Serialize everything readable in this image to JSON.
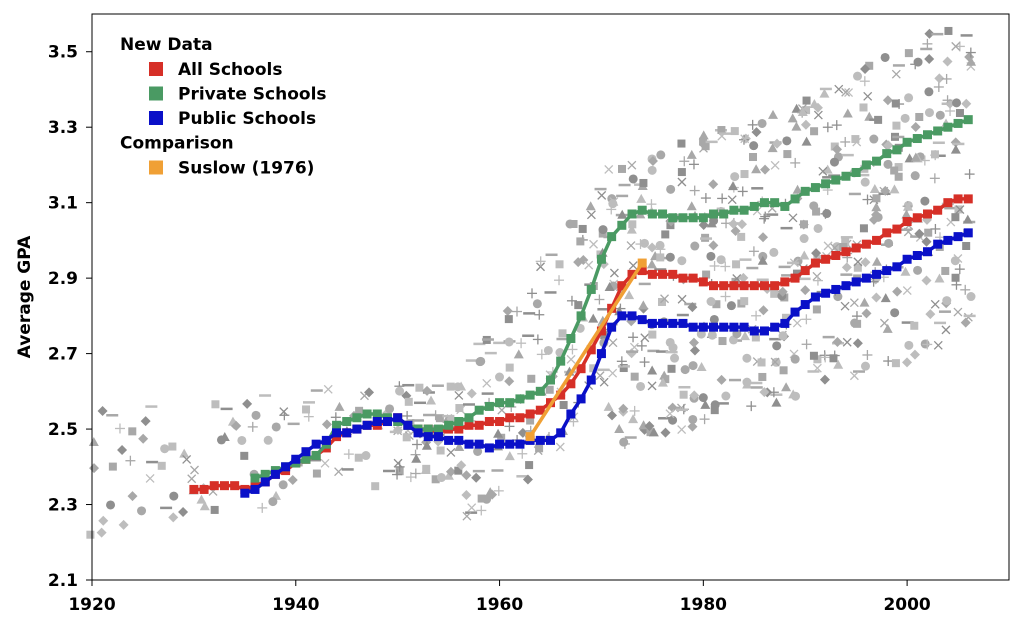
{
  "chart_data": {
    "type": "line",
    "title": "",
    "xlabel": "",
    "ylabel": "Average GPA",
    "xlim": [
      1920,
      2010
    ],
    "ylim": [
      2.1,
      3.6
    ],
    "xticks": [
      "1920",
      "1940",
      "1960",
      "1980",
      "2000"
    ],
    "yticks": [
      "2.1",
      "2.3",
      "2.5",
      "2.7",
      "2.9",
      "3.1",
      "3.3",
      "3.5"
    ],
    "grid": false,
    "legend_position": "top-left",
    "legend": {
      "groups": [
        {
          "heading": "New Data",
          "entries": [
            "All Schools",
            "Private Schools",
            "Public Schools"
          ]
        },
        {
          "heading": "Comparison",
          "entries": [
            "Suslow (1976)"
          ]
        }
      ]
    },
    "series": [
      {
        "name": "All Schools",
        "color": "#d62f27",
        "marker": "square",
        "x": [
          1930,
          1931,
          1932,
          1933,
          1934,
          1935,
          1936,
          1937,
          1938,
          1939,
          1940,
          1941,
          1942,
          1943,
          1944,
          1945,
          1946,
          1947,
          1948,
          1949,
          1950,
          1951,
          1952,
          1953,
          1954,
          1955,
          1956,
          1957,
          1958,
          1959,
          1960,
          1961,
          1962,
          1963,
          1964,
          1965,
          1966,
          1967,
          1968,
          1969,
          1970,
          1971,
          1972,
          1973,
          1974,
          1975,
          1976,
          1977,
          1978,
          1979,
          1980,
          1981,
          1982,
          1983,
          1984,
          1985,
          1986,
          1987,
          1988,
          1989,
          1990,
          1991,
          1992,
          1993,
          1994,
          1995,
          1996,
          1997,
          1998,
          1999,
          2000,
          2001,
          2002,
          2003,
          2004,
          2005,
          2006
        ],
        "values": [
          2.34,
          2.34,
          2.35,
          2.35,
          2.35,
          2.34,
          2.35,
          2.36,
          2.38,
          2.39,
          2.41,
          2.42,
          2.43,
          2.45,
          2.48,
          2.49,
          2.5,
          2.51,
          2.51,
          2.52,
          2.53,
          2.51,
          2.5,
          2.5,
          2.49,
          2.5,
          2.5,
          2.51,
          2.51,
          2.52,
          2.52,
          2.53,
          2.53,
          2.54,
          2.55,
          2.57,
          2.59,
          2.62,
          2.66,
          2.71,
          2.76,
          2.82,
          2.88,
          2.91,
          2.92,
          2.91,
          2.91,
          2.91,
          2.9,
          2.9,
          2.89,
          2.88,
          2.88,
          2.88,
          2.88,
          2.88,
          2.88,
          2.88,
          2.89,
          2.9,
          2.92,
          2.94,
          2.95,
          2.96,
          2.97,
          2.98,
          2.99,
          3.0,
          3.02,
          3.03,
          3.05,
          3.06,
          3.07,
          3.08,
          3.1,
          3.11,
          3.11
        ]
      },
      {
        "name": "Private Schools",
        "color": "#4a9a63",
        "marker": "square",
        "x": [
          1936,
          1937,
          1938,
          1939,
          1940,
          1941,
          1942,
          1943,
          1944,
          1945,
          1946,
          1947,
          1948,
          1949,
          1950,
          1951,
          1952,
          1953,
          1954,
          1955,
          1956,
          1957,
          1958,
          1959,
          1960,
          1961,
          1962,
          1963,
          1964,
          1965,
          1966,
          1967,
          1968,
          1969,
          1970,
          1971,
          1972,
          1973,
          1974,
          1975,
          1976,
          1977,
          1978,
          1979,
          1980,
          1981,
          1982,
          1983,
          1984,
          1985,
          1986,
          1987,
          1988,
          1989,
          1990,
          1991,
          1992,
          1993,
          1994,
          1995,
          1996,
          1997,
          1998,
          1999,
          2000,
          2001,
          2002,
          2003,
          2004,
          2005,
          2006
        ],
        "values": [
          2.37,
          2.38,
          2.39,
          2.4,
          2.41,
          2.42,
          2.43,
          2.46,
          2.51,
          2.52,
          2.53,
          2.54,
          2.54,
          2.53,
          2.52,
          2.51,
          2.5,
          2.5,
          2.5,
          2.51,
          2.52,
          2.53,
          2.55,
          2.56,
          2.57,
          2.57,
          2.58,
          2.59,
          2.6,
          2.63,
          2.68,
          2.74,
          2.8,
          2.87,
          2.95,
          3.01,
          3.04,
          3.07,
          3.08,
          3.07,
          3.07,
          3.06,
          3.06,
          3.06,
          3.06,
          3.07,
          3.07,
          3.08,
          3.08,
          3.09,
          3.1,
          3.1,
          3.09,
          3.11,
          3.13,
          3.14,
          3.15,
          3.16,
          3.17,
          3.18,
          3.2,
          3.21,
          3.23,
          3.24,
          3.26,
          3.27,
          3.28,
          3.29,
          3.3,
          3.31,
          3.32
        ]
      },
      {
        "name": "Public Schools",
        "color": "#0a10c8",
        "marker": "square",
        "x": [
          1935,
          1936,
          1937,
          1938,
          1939,
          1940,
          1941,
          1942,
          1943,
          1944,
          1945,
          1946,
          1947,
          1948,
          1949,
          1950,
          1951,
          1952,
          1953,
          1954,
          1955,
          1956,
          1957,
          1958,
          1959,
          1960,
          1961,
          1962,
          1963,
          1964,
          1965,
          1966,
          1967,
          1968,
          1969,
          1970,
          1971,
          1972,
          1973,
          1974,
          1975,
          1976,
          1977,
          1978,
          1979,
          1980,
          1981,
          1982,
          1983,
          1984,
          1985,
          1986,
          1987,
          1988,
          1989,
          1990,
          1991,
          1992,
          1993,
          1994,
          1995,
          1996,
          1997,
          1998,
          1999,
          2000,
          2001,
          2002,
          2003,
          2004,
          2005,
          2006
        ],
        "values": [
          2.33,
          2.34,
          2.36,
          2.38,
          2.4,
          2.42,
          2.44,
          2.46,
          2.47,
          2.49,
          2.49,
          2.5,
          2.51,
          2.52,
          2.52,
          2.53,
          2.51,
          2.49,
          2.48,
          2.48,
          2.47,
          2.47,
          2.46,
          2.46,
          2.45,
          2.46,
          2.46,
          2.46,
          2.47,
          2.47,
          2.47,
          2.49,
          2.54,
          2.58,
          2.63,
          2.7,
          2.77,
          2.8,
          2.8,
          2.79,
          2.78,
          2.78,
          2.78,
          2.78,
          2.77,
          2.77,
          2.77,
          2.77,
          2.77,
          2.77,
          2.76,
          2.76,
          2.77,
          2.78,
          2.81,
          2.83,
          2.85,
          2.86,
          2.87,
          2.88,
          2.89,
          2.9,
          2.91,
          2.92,
          2.93,
          2.95,
          2.96,
          2.97,
          2.99,
          3.0,
          3.01,
          3.02
        ]
      },
      {
        "name": "Suslow (1976)",
        "color": "#f0a035",
        "marker": "square",
        "x": [
          1963,
          1974
        ],
        "values": [
          2.48,
          2.94
        ]
      }
    ],
    "background_points": {
      "color": "#a8a8a8",
      "description_markers": [
        "diamond",
        "plus",
        "cross",
        "triangle",
        "circle",
        "square",
        "dash"
      ],
      "x_range": [
        1920,
        2006
      ]
    }
  }
}
